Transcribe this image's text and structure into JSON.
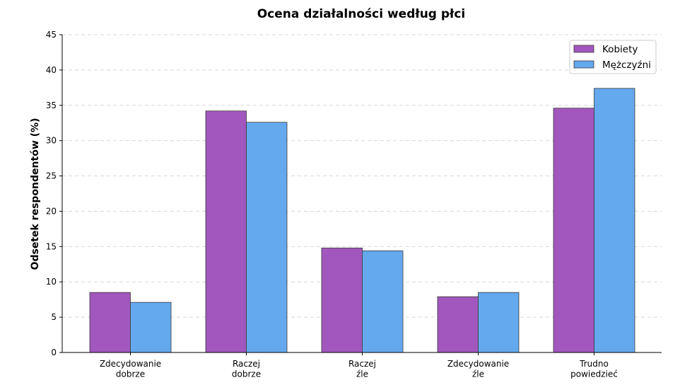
{
  "chart_data": {
    "type": "bar",
    "title": "Ocena działalności według płci",
    "xlabel": "",
    "ylabel": "Odsetek respondentów (%)",
    "ylim": [
      0,
      45
    ],
    "yticks": [
      0,
      5,
      10,
      15,
      20,
      25,
      30,
      35,
      40,
      45
    ],
    "grid": true,
    "legend_position": "top-right",
    "categories": [
      [
        "Zdecydowanie",
        "dobrze"
      ],
      [
        "Raczej",
        "dobrze"
      ],
      [
        "Raczej",
        "źle"
      ],
      [
        "Zdecydowanie",
        "źle"
      ],
      [
        "Trudno",
        "powiedzieć"
      ]
    ],
    "series": [
      {
        "name": "Kobiety",
        "color": "#a157bd",
        "values": [
          8.5,
          34.2,
          14.8,
          7.9,
          34.6
        ]
      },
      {
        "name": "Mężczyźni",
        "color": "#64a8ed",
        "values": [
          7.1,
          32.6,
          14.4,
          8.5,
          37.4
        ]
      }
    ]
  }
}
